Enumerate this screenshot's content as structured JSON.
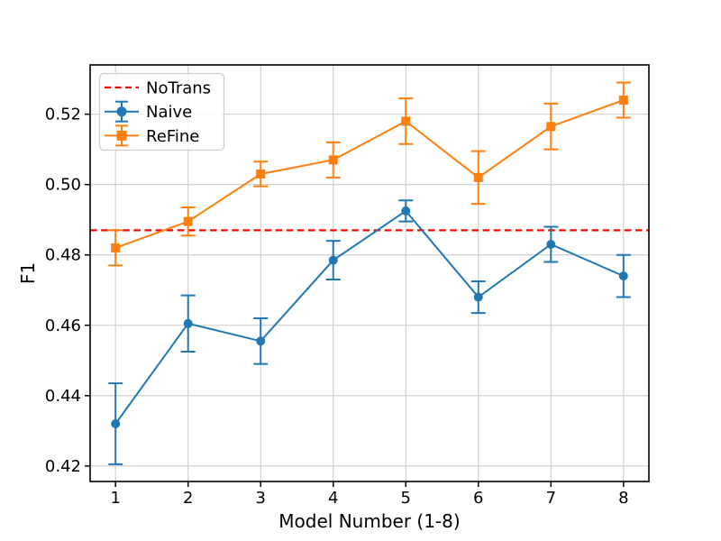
{
  "chart_data": {
    "type": "line",
    "title": "",
    "xlabel": "Model Number (1-8)",
    "ylabel": "F1",
    "x": [
      1,
      2,
      3,
      4,
      5,
      6,
      7,
      8
    ],
    "xtick_labels": [
      "1",
      "2",
      "3",
      "4",
      "5",
      "6",
      "7",
      "8"
    ],
    "ytick_values": [
      0.42,
      0.44,
      0.46,
      0.48,
      0.5,
      0.52
    ],
    "ytick_labels": [
      "0.42",
      "0.44",
      "0.46",
      "0.48",
      "0.50",
      "0.52"
    ],
    "xlim": [
      0.65,
      8.35
    ],
    "ylim": [
      0.4156,
      0.534
    ],
    "grid": true,
    "legend_position": "upper-left",
    "hline": {
      "label": "NoTrans",
      "value": 0.487,
      "color": "#ff0000",
      "style": "dashed"
    },
    "series": [
      {
        "name": "Naive",
        "color": "#1f77b4",
        "marker": "circle",
        "values": [
          0.432,
          0.4605,
          0.4555,
          0.4785,
          0.4925,
          0.468,
          0.483,
          0.474
        ],
        "yerr": [
          0.0115,
          0.008,
          0.0065,
          0.0055,
          0.003,
          0.0045,
          0.005,
          0.006
        ]
      },
      {
        "name": "ReFine",
        "color": "#ff7f0e",
        "marker": "square",
        "values": [
          0.482,
          0.4895,
          0.503,
          0.507,
          0.518,
          0.502,
          0.5165,
          0.524
        ],
        "yerr": [
          0.005,
          0.004,
          0.0035,
          0.005,
          0.0065,
          0.0075,
          0.0065,
          0.005
        ]
      }
    ],
    "colors": {
      "grid": "#cccccc",
      "spine": "#000000",
      "background": "#ffffff",
      "legend_border": "#cccccc"
    }
  }
}
